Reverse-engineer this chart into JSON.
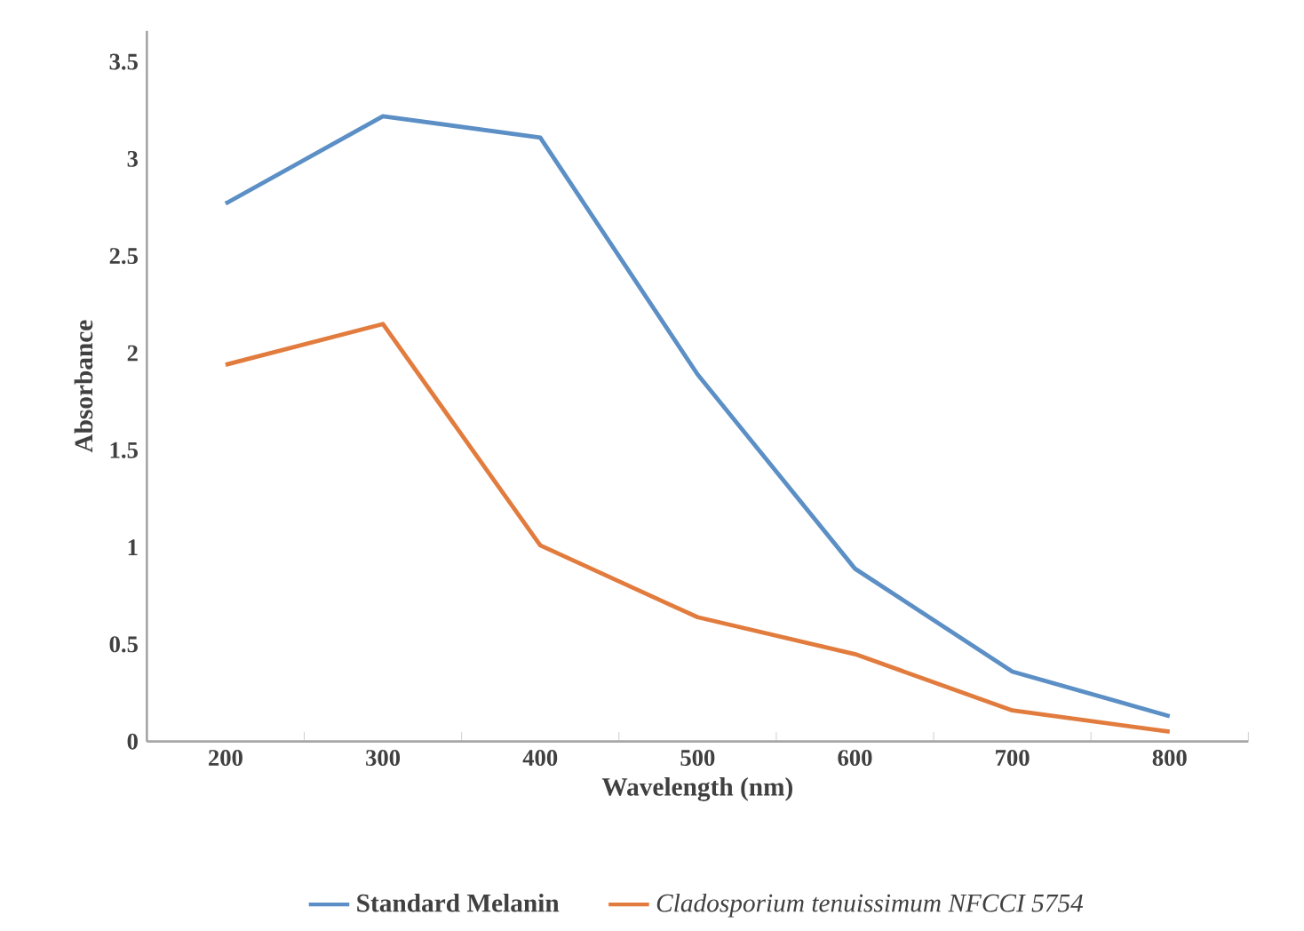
{
  "chart_data": {
    "type": "line",
    "xlabel": "Wavelength (nm)",
    "ylabel": "Absorbance",
    "categories": [
      "200",
      "300",
      "400",
      "500",
      "600",
      "700",
      "800"
    ],
    "series": [
      {
        "name": "Standard Melanin",
        "color": "#5b8fc5",
        "values": [
          2.77,
          3.22,
          3.11,
          1.89,
          0.89,
          0.36,
          0.13
        ]
      },
      {
        "name": "Cladosporium tenuissimum NFCCI 5754",
        "color": "#e27c3e",
        "values": [
          1.94,
          2.15,
          1.01,
          0.64,
          0.45,
          0.16,
          0.05
        ]
      }
    ],
    "ylim": [
      0,
      3.66
    ],
    "yticks": [
      0,
      0.5,
      1,
      1.5,
      2,
      2.5,
      3,
      3.5
    ],
    "grid": false,
    "legend": "bottom",
    "marker": "none",
    "line_style": "solid"
  }
}
